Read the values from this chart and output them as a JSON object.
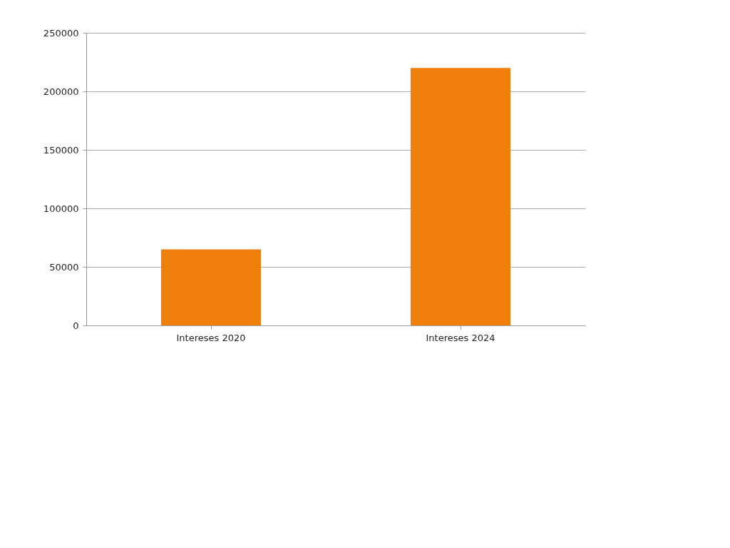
{
  "chart_data": {
    "type": "bar",
    "categories": [
      "Intereses 2020",
      "Intereses 2024"
    ],
    "values": [
      65000,
      220000
    ],
    "color": "#ef7f0a",
    "ylim": [
      0,
      250000
    ],
    "yticks": [
      0,
      50000,
      100000,
      150000,
      200000,
      250000
    ],
    "grid": "y",
    "legend": false
  }
}
